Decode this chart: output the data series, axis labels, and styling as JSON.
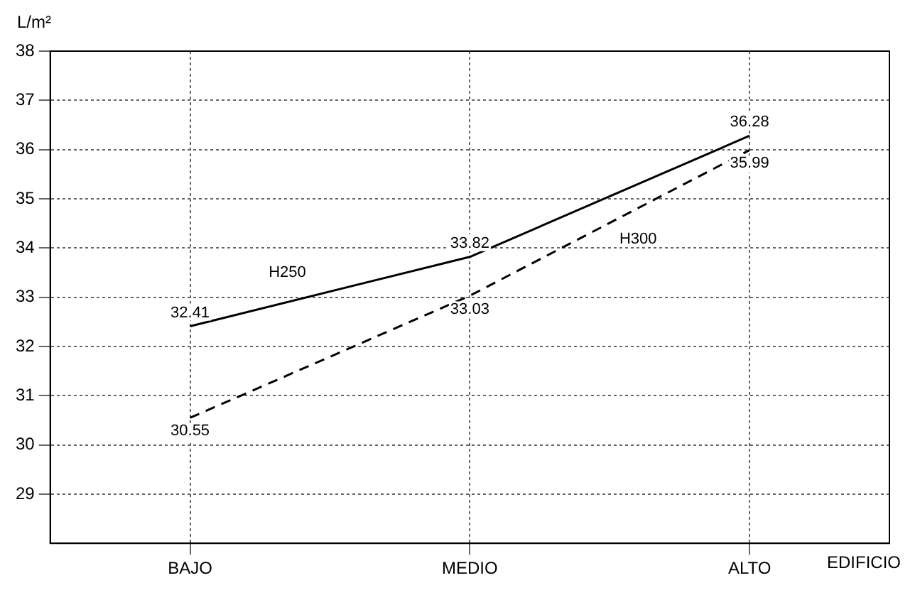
{
  "chart_data": {
    "type": "line",
    "ylabel": "L/m²",
    "xlabel": "EDIFICIO",
    "categories": [
      "BAJO",
      "MEDIO",
      "ALTO"
    ],
    "series": [
      {
        "name": "H250",
        "color": "#000000",
        "line_style": "solid",
        "values": [
          32.41,
          33.82,
          36.28
        ]
      },
      {
        "name": "H300",
        "color": "#000000",
        "line_style": "dashed",
        "values": [
          30.55,
          33.03,
          35.99
        ]
      }
    ],
    "ylim": [
      28,
      38
    ],
    "yticks": [
      29,
      30,
      31,
      32,
      33,
      34,
      35,
      36,
      37,
      38
    ],
    "grid": true,
    "legend": false,
    "marker": "none",
    "data_labels": true
  }
}
